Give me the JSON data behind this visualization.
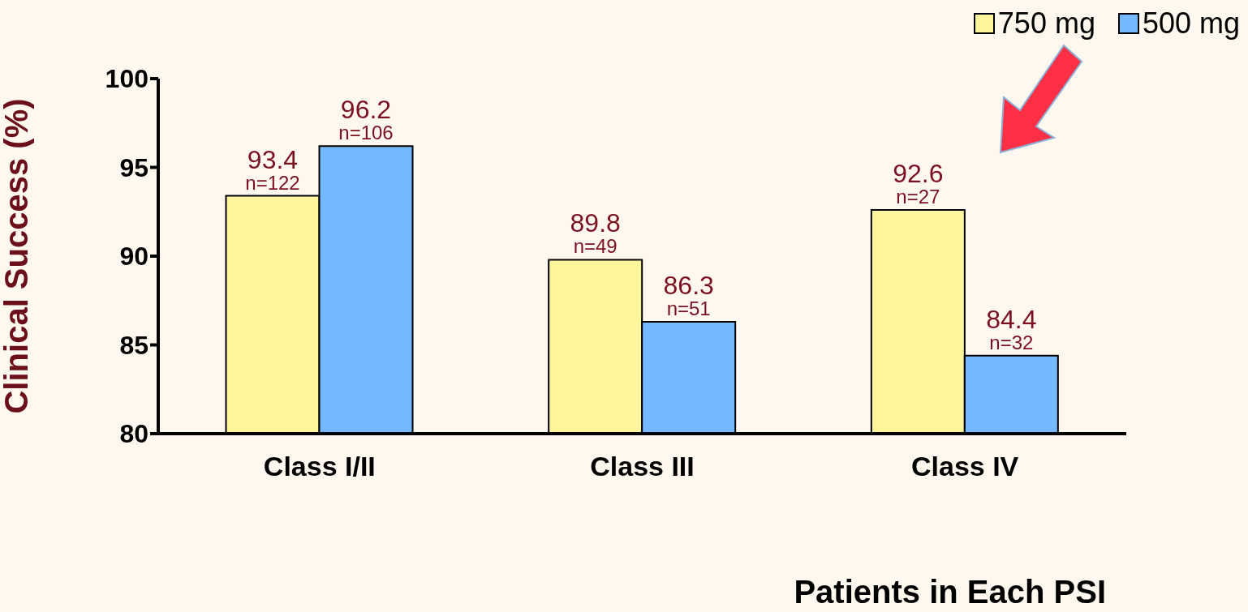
{
  "chart_data": {
    "type": "bar",
    "xlabel": "Patients in Each PSI",
    "ylabel": "Clinical Success (%)",
    "categories": [
      "Class I/II",
      "Class III",
      "Class IV"
    ],
    "series": [
      {
        "name": "750 mg",
        "color": "#fff59d",
        "values": [
          93.4,
          89.8,
          92.6
        ],
        "value_labels": [
          "93.4\nn=122",
          "89.8\nn=49",
          "92.6\nn=27"
        ]
      },
      {
        "name": "500 mg",
        "color": "#74b8ff",
        "values": [
          96.2,
          86.3,
          84.4
        ],
        "value_labels": [
          "96.2\nn=106",
          "86.3\nn=51",
          "84.4\nn=32"
        ]
      }
    ],
    "ylim": [
      80,
      100
    ],
    "yticks": [
      80,
      85,
      90,
      95,
      100
    ],
    "grid": false,
    "legend": "top right"
  }
}
